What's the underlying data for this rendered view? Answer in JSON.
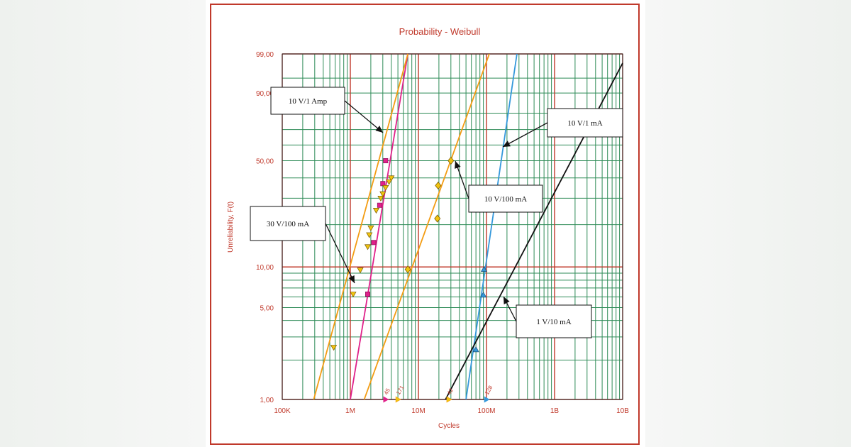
{
  "chart_data": {
    "type": "scatter",
    "title": "Probability - Weibull",
    "xlabel": "Cycles",
    "ylabel": "Unreliability, F(t)",
    "x_scale": "log",
    "y_scale": "weibull",
    "xlim": [
      100000,
      10000000000
    ],
    "ylim": [
      1,
      99
    ],
    "x_ticks": [
      {
        "value": 100000,
        "label": "100K"
      },
      {
        "value": 1000000,
        "label": "1M"
      },
      {
        "value": 10000000,
        "label": "10M"
      },
      {
        "value": 100000000,
        "label": "100M"
      },
      {
        "value": 1000000000,
        "label": "1B"
      },
      {
        "value": 10000000000,
        "label": "10B"
      }
    ],
    "y_ticks": [
      {
        "value": 1,
        "label": "1,00"
      },
      {
        "value": 5,
        "label": "5,00"
      },
      {
        "value": 10,
        "label": "10,00"
      },
      {
        "value": 50,
        "label": "50,00"
      },
      {
        "value": 90,
        "label": "90,00"
      },
      {
        "value": 99,
        "label": "99,00"
      }
    ],
    "grid": true,
    "colors": {
      "frame": "#c0392b",
      "grid_minor": "#2e8b57",
      "grid_major": "#c0392b",
      "text": "#c0392b"
    },
    "series": [
      {
        "callout": "10 V/1 Amp",
        "color": "#e0218a",
        "marker": "square",
        "marker_fill": "#e0218a",
        "fit": [
          [
            1000000,
            1
          ],
          [
            7000000,
            99
          ]
        ],
        "points": [
          [
            1800000,
            6.3
          ],
          [
            2200000,
            15
          ],
          [
            2700000,
            27
          ],
          [
            3000000,
            37
          ],
          [
            3300000,
            50
          ]
        ],
        "suspensions": [
          {
            "x": 3300000,
            "label": "45"
          }
        ]
      },
      {
        "callout": "30 V/100 mA",
        "color": "#f39c12",
        "marker": "triangle-down",
        "marker_fill": "#f1c40f",
        "fit": [
          [
            290000,
            1
          ],
          [
            7000000,
            99
          ]
        ],
        "points": [
          [
            570000,
            2.5
          ],
          [
            1100000,
            6.3
          ],
          [
            1400000,
            9.5
          ],
          [
            1800000,
            14
          ],
          [
            1900000,
            17
          ],
          [
            2000000,
            19
          ],
          [
            2400000,
            25
          ],
          [
            2800000,
            30
          ],
          [
            3000000,
            32
          ],
          [
            3300000,
            35
          ],
          [
            3700000,
            38
          ],
          [
            4000000,
            40
          ]
        ],
        "suspensions": [
          {
            "x": 5000000,
            "label": "171"
          }
        ]
      },
      {
        "callout": "10 V/100 mA",
        "color": "#f39c12",
        "marker": "diamond",
        "marker_fill": "#f1c40f",
        "fit": [
          [
            1600000,
            1
          ],
          [
            110000000,
            99
          ]
        ],
        "points": [
          [
            7000000,
            9.6
          ],
          [
            19000000,
            22
          ],
          [
            19500000,
            36
          ],
          [
            30000000,
            50
          ]
        ],
        "suspensions": [
          {
            "x": 28000000,
            "label": "42"
          }
        ]
      },
      {
        "callout": "10 V/1 mA",
        "color": "#3498db",
        "marker": "triangle-up",
        "marker_fill": "#3498db",
        "fit": [
          [
            50000000,
            1
          ],
          [
            280000000,
            99
          ]
        ],
        "points": [
          [
            70000000,
            2.4
          ],
          [
            90000000,
            6.2
          ],
          [
            92000000,
            9.6
          ]
        ],
        "suspensions": [
          {
            "x": 100000000,
            "label": "128"
          }
        ]
      },
      {
        "callout": "1 V/10 mA",
        "color": "#111111",
        "marker": "none",
        "marker_fill": "#111111",
        "fit": [
          [
            25000000,
            1
          ],
          [
            10000000000,
            98
          ]
        ],
        "points": [],
        "suspensions": []
      }
    ]
  }
}
